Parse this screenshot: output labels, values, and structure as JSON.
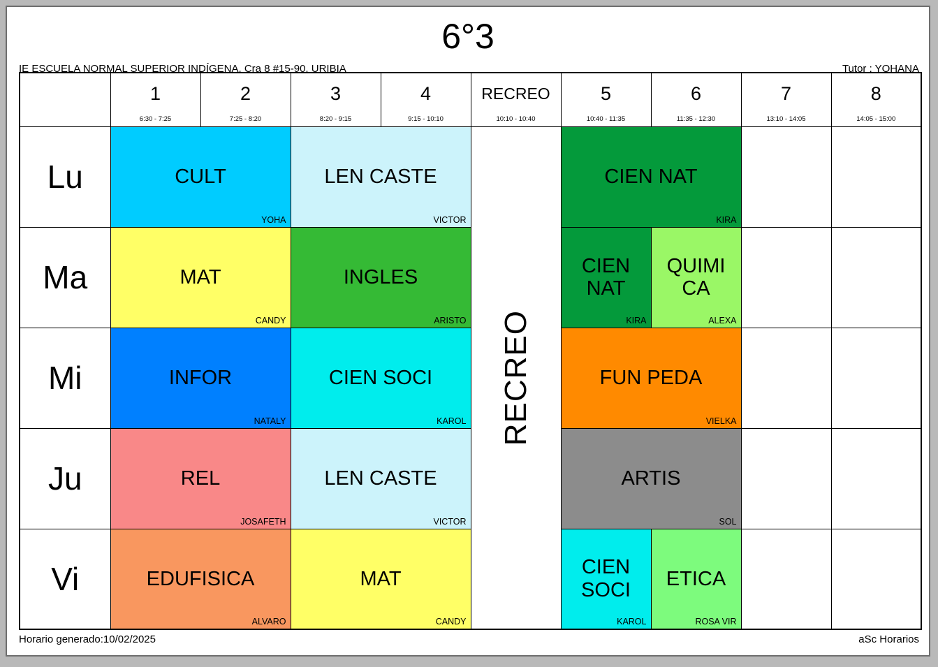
{
  "page": {
    "title": "6°3",
    "school_line": "IE ESCUELA NORMAL SUPERIOR INDÍGENA, Cra 8 #15-90, URIBIA",
    "tutor_line": "Tutor : YOHANA",
    "footer_left": "Horario generado:10/02/2025",
    "footer_right": "aSc Horarios"
  },
  "timetable": {
    "header": {
      "periods": [
        {
          "label": "1",
          "time": "6:30 - 7:25"
        },
        {
          "label": "2",
          "time": "7:25 - 8:20"
        },
        {
          "label": "3",
          "time": "8:20 - 9:15"
        },
        {
          "label": "4",
          "time": "9:15 - 10:10"
        },
        {
          "label": "RECREO",
          "time": "10:10 - 10:40",
          "is_break": true
        },
        {
          "label": "5",
          "time": "10:40 - 11:35"
        },
        {
          "label": "6",
          "time": "11:35 - 12:30"
        },
        {
          "label": "7",
          "time": "13:10 - 14:05"
        },
        {
          "label": "8",
          "time": "14:05 - 15:00"
        }
      ]
    },
    "break_column": {
      "vertical_label": "RECREO"
    },
    "days": [
      {
        "label": "Lu",
        "lessons": [
          {
            "cols": 2,
            "subject": "CULT",
            "teacher": "YOHA",
            "color": "#00CCFF"
          },
          {
            "cols": 2,
            "subject": "LEN CASTE",
            "teacher": "VICTOR",
            "color": "#CCF3FB"
          },
          {
            "cols": 2,
            "subject": "CIEN NAT",
            "teacher": "KIRA",
            "color": "#049A3B"
          },
          {
            "cols": 1,
            "empty": true
          },
          {
            "cols": 1,
            "empty": true
          }
        ]
      },
      {
        "label": "Ma",
        "lessons": [
          {
            "cols": 2,
            "subject": "MAT",
            "teacher": "CANDY",
            "color": "#FFFF66"
          },
          {
            "cols": 2,
            "subject": "INGLES",
            "teacher": "ARISTO",
            "color": "#35BA35"
          },
          {
            "cols": 1,
            "subject": "CIEN NAT",
            "teacher": "KIRA",
            "color": "#049A3B"
          },
          {
            "cols": 1,
            "subject": "QUIMICA",
            "display": "QUIMI\nCA",
            "teacher": "ALEXA",
            "color": "#9AF766"
          },
          {
            "cols": 1,
            "empty": true
          },
          {
            "cols": 1,
            "empty": true
          }
        ]
      },
      {
        "label": "Mi",
        "lessons": [
          {
            "cols": 2,
            "subject": "INFOR",
            "teacher": "NATALY",
            "color": "#0080FF"
          },
          {
            "cols": 2,
            "subject": "CIEN SOCI",
            "teacher": "KAROL",
            "color": "#00EDED"
          },
          {
            "cols": 2,
            "subject": "FUN PEDA",
            "teacher": "VIELKA",
            "color": "#FF8A00"
          },
          {
            "cols": 1,
            "empty": true
          },
          {
            "cols": 1,
            "empty": true
          }
        ]
      },
      {
        "label": "Ju",
        "lessons": [
          {
            "cols": 2,
            "subject": "REL",
            "teacher": "JOSAFETH",
            "color": "#F98888"
          },
          {
            "cols": 2,
            "subject": "LEN CASTE",
            "teacher": "VICTOR",
            "color": "#CCF3FB"
          },
          {
            "cols": 2,
            "subject": "ARTIS",
            "teacher": "SOL",
            "color": "#8C8C8C"
          },
          {
            "cols": 1,
            "empty": true
          },
          {
            "cols": 1,
            "empty": true
          }
        ]
      },
      {
        "label": "Vi",
        "lessons": [
          {
            "cols": 2,
            "subject": "EDUFISICA",
            "teacher": "ALVARO",
            "color": "#F9975F"
          },
          {
            "cols": 2,
            "subject": "MAT",
            "teacher": "CANDY",
            "color": "#FFFF66"
          },
          {
            "cols": 1,
            "subject": "CIEN SOCI",
            "teacher": "KAROL",
            "color": "#00EDED"
          },
          {
            "cols": 1,
            "subject": "ETICA",
            "teacher": "ROSA VIR",
            "color": "#7DFB7D"
          },
          {
            "cols": 1,
            "empty": true
          },
          {
            "cols": 1,
            "empty": true
          }
        ]
      }
    ]
  }
}
